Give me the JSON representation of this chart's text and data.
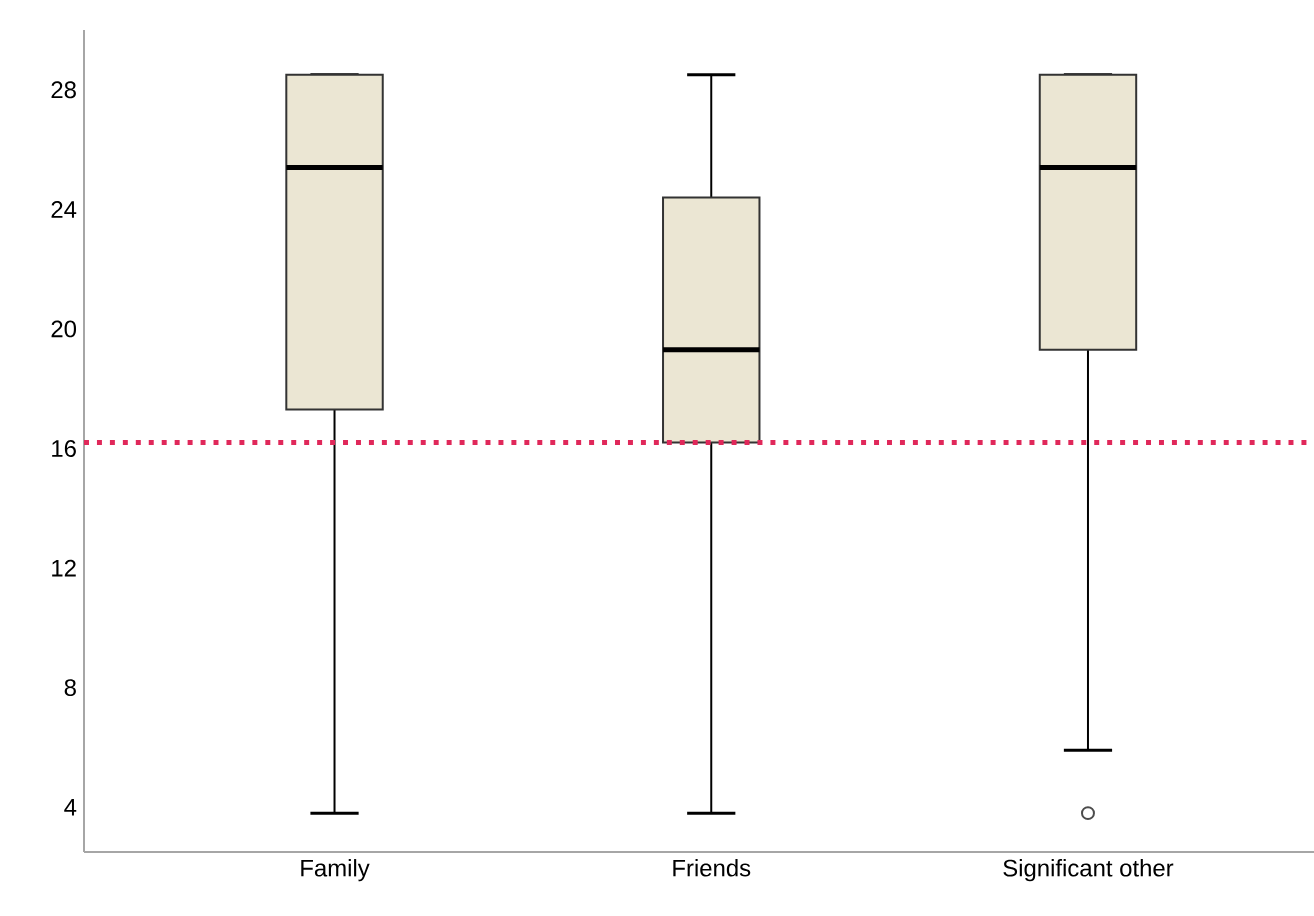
{
  "chart_data": {
    "type": "box",
    "categories": [
      "Family",
      "Friends",
      "Significant other"
    ],
    "boxes": [
      {
        "low": 3.8,
        "q1": 17.3,
        "median": 25.4,
        "q3": 28.5,
        "high": 28.5
      },
      {
        "low": 3.8,
        "q1": 16.2,
        "median": 19.3,
        "q3": 24.4,
        "high": 28.5
      },
      {
        "low": 5.9,
        "q1": 19.3,
        "median": 25.4,
        "q3": 28.5,
        "high": 28.5,
        "outliers": [
          3.8
        ]
      }
    ],
    "color": "#ebe6d3",
    "ylim": [
      2.5,
      30
    ],
    "yticks": [
      4,
      8,
      12,
      16,
      20,
      24,
      28
    ],
    "ref_lines": [
      {
        "axis": "y",
        "value": 16.2,
        "color": "#e0285a",
        "line_style": "dotted"
      }
    ],
    "grid": false
  }
}
